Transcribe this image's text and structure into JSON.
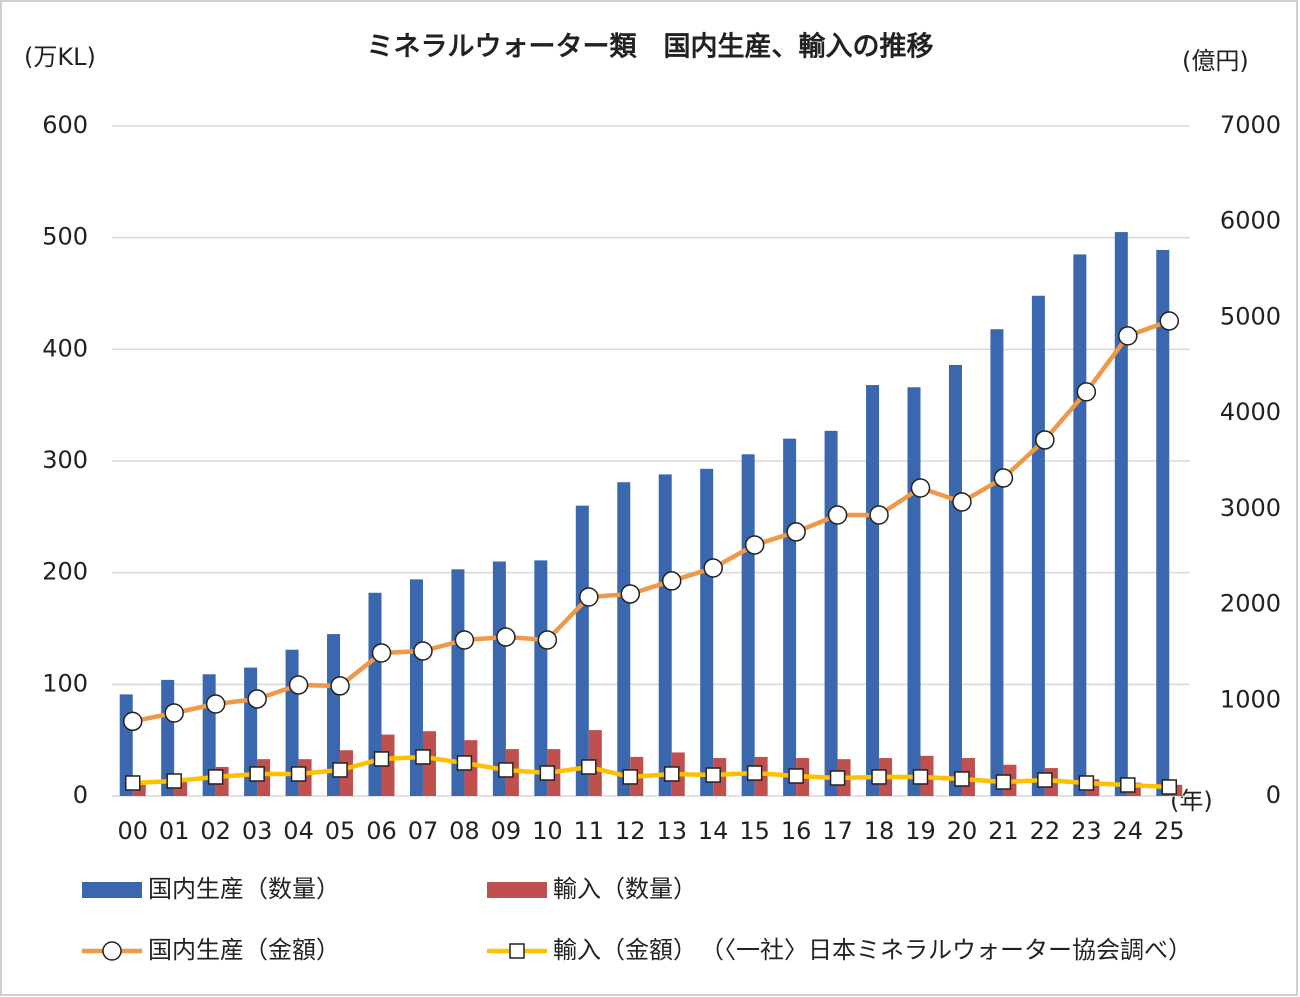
{
  "chart_data": {
    "type": "bar-line",
    "title": "ミネラルウォーター類　国内生産、輸入の推移",
    "y_label": "(万KL)",
    "y2_label": "(億円)",
    "x_label": "(年)",
    "source": "（〈一社〉日本ミネラルウォーター協会調べ）",
    "categories": [
      "00",
      "01",
      "02",
      "03",
      "04",
      "05",
      "06",
      "07",
      "08",
      "09",
      "10",
      "11",
      "12",
      "13",
      "14",
      "15",
      "16",
      "17",
      "18",
      "19",
      "20",
      "21",
      "22",
      "23",
      "24",
      "25"
    ],
    "ylim": [
      0,
      600
    ],
    "yticks": [
      0,
      100,
      200,
      300,
      400,
      500,
      600
    ],
    "y2lim": [
      0,
      7000
    ],
    "y2ticks": [
      0,
      1000,
      2000,
      3000,
      4000,
      5000,
      6000,
      7000
    ],
    "grid": true,
    "series": [
      {
        "name": "国内生産（数量）",
        "type": "bar",
        "color": "#3a67ad",
        "axis": "y",
        "values": [
          91,
          104,
          109,
          115,
          131,
          145,
          182,
          194,
          203,
          210,
          211,
          260,
          281,
          288,
          293,
          306,
          320,
          327,
          368,
          366,
          386,
          418,
          448,
          485,
          505,
          489
        ]
      },
      {
        "name": "輸入（数量）",
        "type": "bar",
        "color": "#c0504d",
        "axis": "y",
        "values": [
          10,
          14,
          26,
          33,
          33,
          41,
          55,
          58,
          50,
          42,
          42,
          59,
          35,
          39,
          34,
          35,
          34,
          33,
          34,
          36,
          34,
          28,
          25,
          15,
          12,
          10
        ]
      },
      {
        "name": "国内生産（金額）",
        "type": "line",
        "marker": "circle",
        "color": "#f0984a",
        "axis": "y2",
        "values": [
          780,
          867,
          961,
          1014,
          1160,
          1150,
          1494,
          1515,
          1630,
          1661,
          1630,
          2079,
          2111,
          2247,
          2382,
          2623,
          2759,
          2936,
          2936,
          3218,
          3072,
          3323,
          3720,
          4222,
          4807,
          4963
        ]
      },
      {
        "name": "輸入（金額）",
        "type": "line",
        "marker": "square",
        "color": "#ffc000",
        "axis": "y2",
        "values": [
          136,
          157,
          199,
          230,
          230,
          272,
          387,
          408,
          345,
          272,
          240,
          303,
          199,
          230,
          219,
          240,
          209,
          188,
          199,
          199,
          178,
          146,
          167,
          136,
          115,
          94
        ]
      }
    ]
  }
}
